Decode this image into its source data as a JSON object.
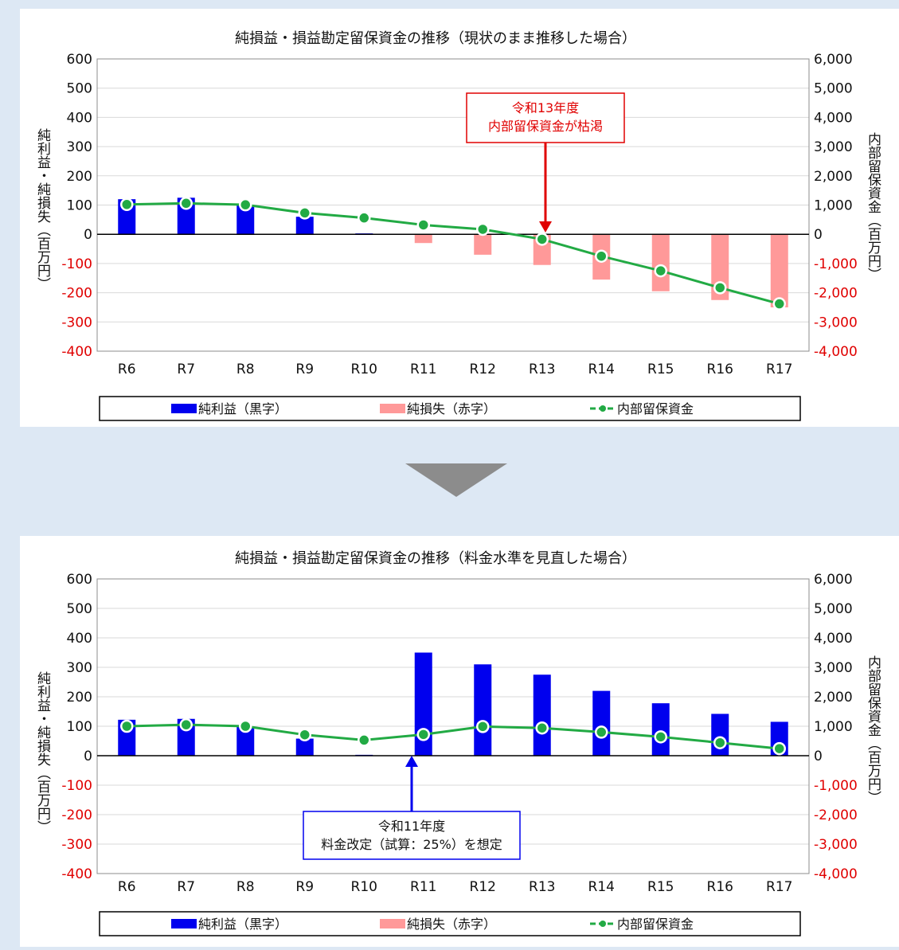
{
  "chart_data": [
    {
      "type": "bar",
      "title": "純損益・損益勘定留保資金の推移（現状のまま推移した場合）",
      "categories": [
        "R6",
        "R7",
        "R8",
        "R9",
        "R10",
        "R11",
        "R12",
        "R13",
        "R14",
        "R15",
        "R16",
        "R17"
      ],
      "ylabel": "純利益・純損失（百万円）",
      "y2label": "内部留保資金（百万円）",
      "ylim": [
        -400,
        600
      ],
      "y2lim": [
        -4000,
        6000
      ],
      "yticks": [
        "600",
        "500",
        "400",
        "300",
        "200",
        "100",
        "0",
        "-100",
        "-200",
        "-300",
        "-400"
      ],
      "y2ticks": [
        "6,000",
        "5,000",
        "4,000",
        "3,000",
        "2,000",
        "1,000",
        "0",
        "-1,000",
        "-2,000",
        "-3,000",
        "-4,000"
      ],
      "grid": true,
      "series": [
        {
          "name": "純利益（黒字）",
          "kind": "bar",
          "color": "#0000ee",
          "values": [
            120,
            125,
            100,
            60,
            3,
            0,
            0,
            0,
            0,
            0,
            0,
            0
          ]
        },
        {
          "name": "純損失（赤字）",
          "kind": "bar",
          "color": "#ff9999",
          "values": [
            0,
            0,
            0,
            0,
            0,
            -30,
            -70,
            -105,
            -155,
            -195,
            -225,
            -250
          ]
        },
        {
          "name": "内部留保資金",
          "kind": "line",
          "axis": "right",
          "color": "#22aa44",
          "values": [
            1020,
            1060,
            1010,
            730,
            560,
            320,
            170,
            -170,
            -750,
            -1250,
            -1830,
            -2380
          ]
        }
      ],
      "annotation": {
        "lines": [
          "令和13年度",
          "内部留保資金が枯渇"
        ],
        "color": "#e00000"
      },
      "legend": {
        "position": "bottom",
        "items": [
          "純利益（黒字）",
          "純損失（赤字）",
          "内部留保資金"
        ]
      }
    },
    {
      "type": "bar",
      "title": "純損益・損益勘定留保資金の推移（料金水準を見直した場合）",
      "categories": [
        "R6",
        "R7",
        "R8",
        "R9",
        "R10",
        "R11",
        "R12",
        "R13",
        "R14",
        "R15",
        "R16",
        "R17"
      ],
      "ylabel": "純利益・純損失（百万円）",
      "y2label": "内部留保資金（百万円）",
      "ylim": [
        -400,
        600
      ],
      "y2lim": [
        -4000,
        6000
      ],
      "yticks": [
        "600",
        "500",
        "400",
        "300",
        "200",
        "100",
        "0",
        "-100",
        "-200",
        "-300",
        "-400"
      ],
      "y2ticks": [
        "6,000",
        "5,000",
        "4,000",
        "3,000",
        "2,000",
        "1,000",
        "0",
        "-1,000",
        "-2,000",
        "-3,000",
        "-4,000"
      ],
      "grid": true,
      "series": [
        {
          "name": "純利益（黒字）",
          "kind": "bar",
          "color": "#0000ee",
          "values": [
            122,
            125,
            100,
            58,
            3,
            350,
            310,
            275,
            220,
            178,
            142,
            115
          ]
        },
        {
          "name": "純損失（赤字）",
          "kind": "bar",
          "color": "#ff9999",
          "values": [
            0,
            0,
            0,
            0,
            0,
            0,
            0,
            0,
            0,
            0,
            0,
            0
          ]
        },
        {
          "name": "内部留保資金",
          "kind": "line",
          "axis": "right",
          "color": "#22aa44",
          "values": [
            1000,
            1050,
            1000,
            710,
            530,
            720,
            990,
            940,
            800,
            640,
            440,
            240
          ]
        }
      ],
      "annotation": {
        "lines": [
          "令和11年度",
          "料金改定（試算：25%）を想定"
        ],
        "color": "#0000ee"
      },
      "legend": {
        "position": "bottom",
        "items": [
          "純利益（黒字）",
          "純損失（赤字）",
          "内部留保資金"
        ]
      }
    }
  ]
}
